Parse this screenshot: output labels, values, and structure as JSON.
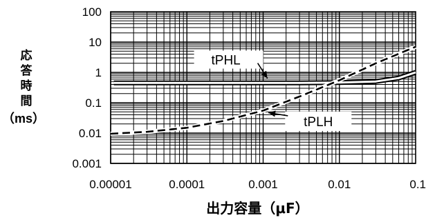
{
  "chart_data": {
    "type": "line",
    "title": "",
    "xlabel": "出力容量（μF）",
    "ylabel": [
      "応",
      "答",
      "時",
      "間",
      "（ms）"
    ],
    "xscale": "log",
    "yscale": "log",
    "xlim": [
      1e-05,
      0.1
    ],
    "ylim": [
      0.001,
      100
    ],
    "grid": true,
    "x_ticks": [
      "0.00001",
      "0.0001",
      "0.001",
      "0.01",
      "0.1"
    ],
    "y_ticks": [
      "100",
      "10",
      "1",
      "0.1",
      "0.01",
      "0.001"
    ],
    "series": [
      {
        "name": "tPHL",
        "style": "solid-double",
        "points": [
          [
            1.1e-05,
            0.45
          ],
          [
            5e-05,
            0.45
          ],
          [
            0.0002,
            0.45
          ],
          [
            0.001,
            0.45
          ],
          [
            0.003,
            0.45
          ],
          [
            0.01,
            0.46
          ],
          [
            0.03,
            0.5
          ],
          [
            0.06,
            0.65
          ],
          [
            0.1,
            1.0
          ]
        ]
      },
      {
        "name": "tPLH",
        "style": "dashed",
        "points": [
          [
            1e-05,
            0.0095
          ],
          [
            3e-05,
            0.011
          ],
          [
            0.0001,
            0.015
          ],
          [
            0.0003,
            0.025
          ],
          [
            0.001,
            0.055
          ],
          [
            0.003,
            0.16
          ],
          [
            0.01,
            0.55
          ],
          [
            0.03,
            2.0
          ],
          [
            0.1,
            7.0
          ]
        ]
      }
    ],
    "annotations": [
      {
        "text": "tPHL",
        "x": 0.0004,
        "y": 1.2
      },
      {
        "text": "tPLH",
        "x": 0.006,
        "y": 0.022
      }
    ]
  }
}
